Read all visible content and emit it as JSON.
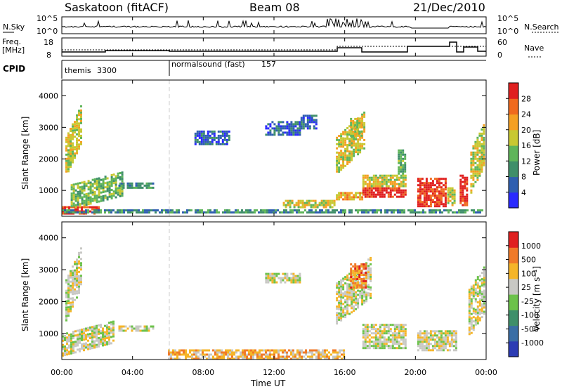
{
  "header": {
    "site": "Saskatoon (fitACF)",
    "beam": "Beam 08",
    "date": "21/Dec/2010"
  },
  "aux_panels": {
    "noise": {
      "left_label": "N.Sky",
      "left_ticks": [
        "10^5",
        "10^0"
      ],
      "right_ticks": [
        "10^5",
        "10^0"
      ],
      "right_label": "N.Search"
    },
    "frequency": {
      "left_label_1": "Freq.",
      "left_label_2": "[MHz]",
      "left_ticks": [
        "18",
        "8"
      ],
      "right_ticks": [
        "60",
        "0"
      ],
      "right_label": "Nave"
    },
    "cpid": {
      "label": "CPID",
      "segments": [
        {
          "name": "themis",
          "id": "3300"
        },
        {
          "name": "normalsound (fast)",
          "id": "157"
        }
      ]
    }
  },
  "x_axis": {
    "label": "Time UT",
    "ticks": [
      "00:00",
      "04:00",
      "08:00",
      "12:00",
      "16:00",
      "20:00",
      "00:00"
    ]
  },
  "panels": [
    {
      "ylabel": "Slant Range [km]",
      "yticks": [
        "4000",
        "3000",
        "2000",
        "1000"
      ],
      "colorbar_label": "Power [dB]",
      "colorbar_ticks": [
        "28",
        "24",
        "20",
        "16",
        "12",
        "8",
        "4"
      ],
      "colors": [
        "#2a2aff",
        "#2f5fb0",
        "#3f8f6a",
        "#5fb55a",
        "#c8c832",
        "#f5a023",
        "#f06a1e",
        "#e02020"
      ]
    },
    {
      "ylabel": "Slant Range [km]",
      "yticks": [
        "4000",
        "3000",
        "2000",
        "1000"
      ],
      "colorbar_label": "Velocity [m s⁻¹]",
      "colorbar_ticks": [
        "1000",
        "500",
        "100",
        "25",
        "-25",
        "-100",
        "-500",
        "-1000"
      ],
      "colors": [
        "#2c3cb4",
        "#3a6ea5",
        "#3f8f6a",
        "#6cc24a",
        "#c8c8c4",
        "#f5b528",
        "#f07a28",
        "#e02020"
      ]
    }
  ],
  "chart_data": {
    "type": "heatmap",
    "x_range_hours": [
      0,
      24
    ],
    "y_range_km": [
      180,
      4500
    ],
    "xlabel": "Time UT",
    "ylabel": "Slant Range [km]",
    "power_blobs": [
      {
        "t0": 0.2,
        "t1": 1.1,
        "r0": 1400,
        "r1": 2700,
        "level": 4,
        "slant": 1000
      },
      {
        "t0": 0.0,
        "t1": 2.2,
        "r0": 250,
        "r1": 500,
        "level": 7
      },
      {
        "t0": 0.5,
        "t1": 3.5,
        "r0": 400,
        "r1": 1200,
        "level": 3,
        "slant": 400
      },
      {
        "t0": 3.2,
        "t1": 5.2,
        "r0": 1050,
        "r1": 1250,
        "level": 2
      },
      {
        "t0": 7.5,
        "t1": 9.5,
        "r0": 2400,
        "r1": 2900,
        "level": 1
      },
      {
        "t0": 11.5,
        "t1": 13.5,
        "r0": 2700,
        "r1": 3200,
        "level": 1
      },
      {
        "t0": 13.5,
        "t1": 14.5,
        "r0": 2900,
        "r1": 3400,
        "level": 1
      },
      {
        "t0": 12.5,
        "t1": 15.5,
        "r0": 400,
        "r1": 700,
        "level": 4
      },
      {
        "t0": 15.5,
        "t1": 17.2,
        "r0": 1500,
        "r1": 2700,
        "level": 4,
        "slant": 800
      },
      {
        "t0": 16.3,
        "t1": 17.0,
        "r0": 2700,
        "r1": 3300,
        "level": 4
      },
      {
        "t0": 15.5,
        "t1": 17.0,
        "r0": 700,
        "r1": 950,
        "level": 5
      },
      {
        "t0": 17.0,
        "t1": 19.5,
        "r0": 750,
        "r1": 1100,
        "level": 7
      },
      {
        "t0": 17.0,
        "t1": 19.5,
        "r0": 1100,
        "r1": 1500,
        "level": 4
      },
      {
        "t0": 19.0,
        "t1": 19.5,
        "r0": 1500,
        "r1": 2300,
        "level": 3
      },
      {
        "t0": 20.1,
        "t1": 21.8,
        "r0": 450,
        "r1": 1400,
        "level": 7
      },
      {
        "t0": 21.8,
        "t1": 22.3,
        "r0": 500,
        "r1": 1100,
        "level": 4
      },
      {
        "t0": 22.5,
        "t1": 23.0,
        "r0": 500,
        "r1": 1500,
        "level": 7
      },
      {
        "t0": 23.1,
        "t1": 23.9,
        "r0": 900,
        "r1": 2300,
        "level": 4,
        "slant": 800
      },
      {
        "t0": 0.0,
        "t1": 23.9,
        "r0": 250,
        "r1": 400,
        "level": 2
      }
    ],
    "velocity_blobs": [
      {
        "t0": 0.2,
        "t1": 1.1,
        "r0": 1400,
        "r1": 2700,
        "level": 4,
        "slant": 1000
      },
      {
        "t0": 0.0,
        "t1": 3.0,
        "r0": 300,
        "r1": 1000,
        "level": 4,
        "slant": 400
      },
      {
        "t0": 3.2,
        "t1": 5.2,
        "r0": 1050,
        "r1": 1250,
        "level": 4
      },
      {
        "t0": 11.5,
        "t1": 13.5,
        "r0": 2600,
        "r1": 2900,
        "level": 4
      },
      {
        "t0": 6.0,
        "t1": 16.0,
        "r0": 200,
        "r1": 500,
        "level": 5
      },
      {
        "t0": 15.5,
        "t1": 17.5,
        "r0": 1300,
        "r1": 2600,
        "level": 4,
        "slant": 800
      },
      {
        "t0": 16.3,
        "t1": 17.2,
        "r0": 2400,
        "r1": 3200,
        "level": 6
      },
      {
        "t0": 17.0,
        "t1": 19.5,
        "r0": 500,
        "r1": 1300,
        "level": 4
      },
      {
        "t0": 20.1,
        "t1": 22.4,
        "r0": 450,
        "r1": 1100,
        "level": 4
      },
      {
        "t0": 23.0,
        "t1": 23.9,
        "r0": 900,
        "r1": 2400,
        "level": 4,
        "slant": 700
      }
    ]
  }
}
